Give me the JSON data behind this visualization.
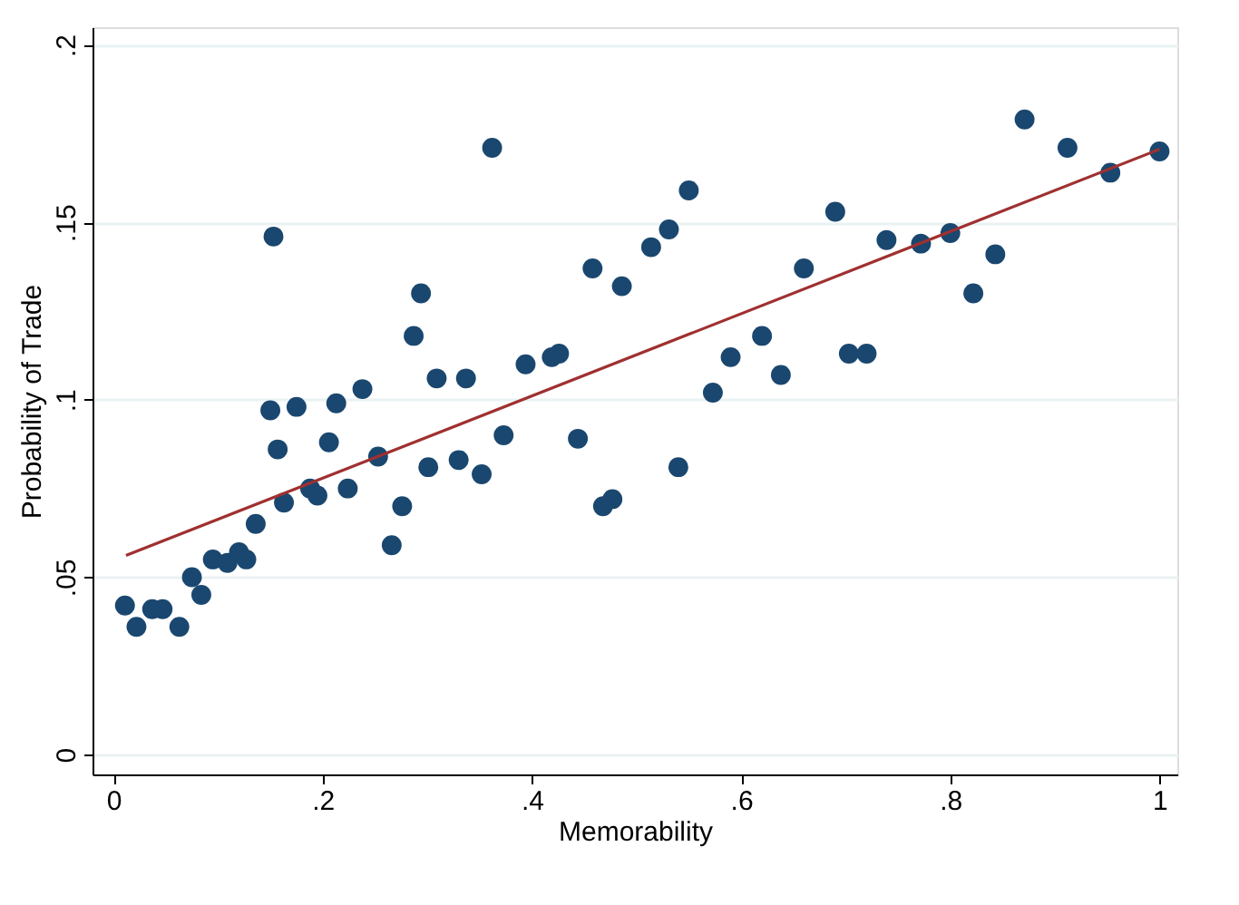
{
  "chart_data": {
    "type": "scatter",
    "xlabel": "Memorability",
    "ylabel": "Probability of Trade",
    "xlim": [
      -0.02,
      1.017
    ],
    "ylim": [
      -0.0056,
      0.205
    ],
    "xticks": [
      {
        "value": 0,
        "label": "0"
      },
      {
        "value": 0.2,
        "label": ".2"
      },
      {
        "value": 0.4,
        "label": ".4"
      },
      {
        "value": 0.6,
        "label": ".6"
      },
      {
        "value": 0.8,
        "label": ".8"
      },
      {
        "value": 1,
        "label": "1"
      }
    ],
    "yticks": [
      {
        "value": 0,
        "label": "0"
      },
      {
        "value": 0.05,
        "label": ".05"
      },
      {
        "value": 0.1,
        "label": ".1"
      },
      {
        "value": 0.15,
        "label": ".15"
      },
      {
        "value": 0.2,
        "label": ".2"
      }
    ],
    "grid": "y",
    "series": [
      {
        "marker": "circle",
        "color": "#1a476f",
        "x": [
          0.011,
          0.022,
          0.037,
          0.047,
          0.063,
          0.075,
          0.084,
          0.095,
          0.109,
          0.12,
          0.127,
          0.136,
          0.15,
          0.153,
          0.157,
          0.163,
          0.175,
          0.188,
          0.195,
          0.206,
          0.213,
          0.224,
          0.238,
          0.253,
          0.266,
          0.276,
          0.287,
          0.294,
          0.301,
          0.309,
          0.33,
          0.337,
          0.352,
          0.362,
          0.373,
          0.394,
          0.419,
          0.426,
          0.444,
          0.458,
          0.468,
          0.477,
          0.486,
          0.514,
          0.531,
          0.54,
          0.55,
          0.573,
          0.59,
          0.62,
          0.638,
          0.66,
          0.69,
          0.703,
          0.72,
          0.739,
          0.772,
          0.8,
          0.822,
          0.843,
          0.871,
          0.912,
          0.953,
          1.0
        ],
        "values": [
          0.042,
          0.036,
          0.041,
          0.041,
          0.036,
          0.05,
          0.045,
          0.055,
          0.054,
          0.057,
          0.055,
          0.065,
          0.097,
          0.146,
          0.086,
          0.071,
          0.098,
          0.075,
          0.073,
          0.088,
          0.099,
          0.075,
          0.103,
          0.084,
          0.059,
          0.07,
          0.118,
          0.13,
          0.081,
          0.106,
          0.083,
          0.106,
          0.079,
          0.171,
          0.09,
          0.11,
          0.112,
          0.113,
          0.089,
          0.137,
          0.07,
          0.072,
          0.132,
          0.143,
          0.148,
          0.081,
          0.159,
          0.102,
          0.112,
          0.118,
          0.107,
          0.137,
          0.153,
          0.113,
          0.113,
          0.145,
          0.144,
          0.147,
          0.13,
          0.141,
          0.179,
          0.171,
          0.164,
          0.17
        ]
      },
      {
        "type": "line",
        "marker": "none",
        "color": "#a03030",
        "x": [
          0.012,
          1.0
        ],
        "values": [
          0.0561,
          0.1706
        ]
      }
    ]
  }
}
